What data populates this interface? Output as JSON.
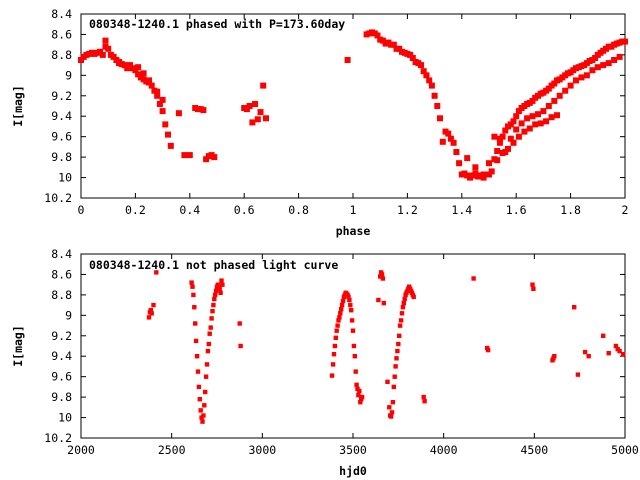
{
  "chart_data": [
    {
      "type": "scatter",
      "title": "080348-1240.1 phased with P=173.60day",
      "xlabel": "phase",
      "ylabel": "I[mag]",
      "xlim": [
        0,
        2
      ],
      "ylim": [
        10.2,
        8.4
      ],
      "y_inverted": true,
      "xticks": [
        "0",
        "0.2",
        "0.4",
        "0.6",
        "0.8",
        "1",
        "1.2",
        "1.4",
        "1.6",
        "1.8",
        "2"
      ],
      "yticks": [
        "8.4",
        "8.6",
        "8.8",
        "9",
        "9.2",
        "9.4",
        "9.6",
        "9.8",
        "10",
        "10.2"
      ],
      "marker_color": "#ff0000",
      "grid": false,
      "series": [
        {
          "x": [
            0.0,
            0.01,
            0.02,
            0.03,
            0.04,
            0.05,
            0.06,
            0.07,
            0.08,
            0.09,
            0.1,
            0.11,
            0.12,
            0.13,
            0.14,
            0.15,
            0.16,
            0.17,
            0.18,
            0.19,
            0.2,
            0.21,
            0.22,
            0.23,
            0.24,
            0.25,
            0.26,
            0.27,
            0.28,
            0.29,
            0.3,
            0.31,
            0.32,
            0.33,
            0.36,
            0.38,
            0.4,
            0.42,
            0.43,
            0.44,
            0.45,
            0.46,
            0.47,
            0.48,
            0.49,
            0.6,
            0.61,
            0.62,
            0.63,
            0.64,
            0.65,
            0.66,
            0.67,
            0.68,
            0.98,
            1.05,
            1.06,
            1.07,
            1.08,
            1.09,
            1.1,
            1.11,
            1.12,
            1.13,
            1.14,
            1.15,
            1.16,
            1.17,
            1.18,
            1.19,
            1.2,
            1.21,
            1.22,
            1.23,
            1.24,
            1.25,
            1.26,
            1.27,
            1.28,
            1.29,
            1.3,
            1.31,
            1.32,
            1.33,
            1.34,
            1.35,
            1.36,
            1.37,
            1.38,
            1.39,
            1.4,
            1.41,
            1.42,
            1.43,
            1.44,
            1.45,
            1.46,
            1.47,
            1.48,
            1.49,
            1.5,
            1.51,
            1.52,
            1.53,
            1.54,
            1.55,
            1.56,
            1.57,
            1.58,
            1.59,
            1.6,
            1.61,
            1.62,
            1.63,
            1.64,
            1.65,
            1.66,
            1.67,
            1.68,
            1.69,
            1.7,
            1.71,
            1.72,
            1.73,
            1.74,
            1.75,
            1.76,
            1.77,
            1.78,
            1.79,
            1.8,
            1.81,
            1.82,
            1.83,
            1.84,
            1.85,
            1.86,
            1.87,
            1.88,
            1.89,
            1.9,
            1.91,
            1.92,
            1.93,
            1.94,
            1.95,
            1.96,
            1.97,
            1.98,
            1.99,
            2.0,
            1.52,
            1.54,
            1.56,
            1.58,
            1.6,
            1.62,
            1.64,
            1.66,
            1.68,
            1.7,
            1.72,
            1.74,
            1.76,
            1.78,
            1.8,
            1.82,
            1.84,
            1.86,
            1.88,
            1.9,
            1.92,
            1.94,
            1.96,
            1.98,
            1.42,
            1.45,
            1.48,
            1.5,
            1.53,
            1.55,
            1.57,
            1.59,
            1.61,
            1.63,
            1.65,
            1.67,
            1.69,
            1.71,
            1.73,
            1.75,
            0.09,
            0.14,
            0.18,
            0.21,
            0.23,
            0.25,
            0.28,
            0.3
          ],
          "y": [
            8.85,
            8.82,
            8.8,
            8.79,
            8.78,
            8.79,
            8.78,
            8.77,
            8.8,
            8.66,
            8.74,
            8.8,
            8.82,
            8.85,
            8.87,
            8.89,
            8.9,
            8.93,
            8.92,
            8.93,
            8.95,
            8.99,
            9.02,
            9.04,
            9.06,
            9.07,
            9.1,
            9.15,
            9.2,
            9.28,
            9.35,
            9.48,
            9.58,
            9.69,
            9.37,
            9.78,
            9.78,
            9.32,
            9.33,
            9.33,
            9.34,
            9.82,
            9.79,
            9.78,
            9.8,
            9.32,
            9.33,
            9.3,
            9.46,
            9.28,
            9.43,
            9.36,
            9.1,
            9.42,
            8.85,
            8.6,
            8.59,
            8.58,
            8.59,
            8.61,
            8.65,
            8.66,
            8.69,
            8.68,
            8.7,
            8.7,
            8.74,
            8.74,
            8.77,
            8.78,
            8.79,
            8.8,
            8.83,
            8.87,
            8.88,
            8.9,
            8.96,
            9.0,
            9.05,
            9.1,
            9.2,
            9.3,
            9.42,
            9.65,
            9.55,
            9.57,
            9.62,
            9.66,
            9.75,
            9.86,
            9.97,
            9.96,
            9.98,
            10.0,
            9.98,
            9.96,
            9.99,
            9.98,
            9.97,
            9.97,
            9.86,
            9.94,
            9.82,
            9.74,
            9.66,
            9.6,
            9.54,
            9.5,
            9.48,
            9.45,
            9.4,
            9.35,
            9.32,
            9.3,
            9.28,
            9.27,
            9.25,
            9.22,
            9.2,
            9.18,
            9.17,
            9.15,
            9.13,
            9.1,
            9.08,
            9.05,
            9.04,
            9.02,
            9.0,
            8.98,
            8.97,
            8.95,
            8.93,
            8.92,
            8.91,
            8.9,
            8.88,
            8.86,
            8.85,
            8.83,
            8.8,
            8.78,
            8.76,
            8.74,
            8.72,
            8.72,
            8.7,
            8.69,
            8.68,
            8.67,
            8.67,
            9.6,
            9.62,
            9.75,
            9.62,
            9.53,
            9.47,
            9.42,
            9.4,
            9.38,
            9.35,
            9.3,
            9.25,
            9.2,
            9.15,
            9.1,
            9.05,
            9.02,
            9.0,
            8.95,
            8.92,
            8.9,
            8.88,
            8.85,
            8.82,
            9.81,
            9.9,
            10.0,
            9.97,
            9.83,
            9.76,
            9.72,
            9.66,
            9.6,
            9.55,
            9.52,
            9.48,
            9.47,
            9.45,
            9.41,
            9.39,
            8.72,
            8.88,
            8.9,
            8.92,
            8.98,
            9.05,
            9.16,
            9.24
          ]
        }
      ]
    },
    {
      "type": "scatter",
      "title": "080348-1240.1 not phased light curve",
      "xlabel": "hjd0",
      "ylabel": "I[mag]",
      "xlim": [
        2000,
        5000
      ],
      "ylim": [
        10.2,
        8.4
      ],
      "y_inverted": true,
      "xticks": [
        "2000",
        "2500",
        "3000",
        "3500",
        "4000",
        "4500",
        "5000"
      ],
      "yticks": [
        "8.4",
        "8.6",
        "8.8",
        "9",
        "9.2",
        "9.4",
        "9.6",
        "9.8",
        "10",
        "10.2"
      ],
      "marker_color": "#ff0000",
      "grid": false,
      "series": [
        {
          "x": [
            2375,
            2380,
            2385,
            2390,
            2400,
            2415,
            2610,
            2615,
            2620,
            2625,
            2630,
            2635,
            2640,
            2645,
            2650,
            2655,
            2660,
            2665,
            2670,
            2675,
            2680,
            2685,
            2690,
            2695,
            2700,
            2705,
            2710,
            2715,
            2720,
            2725,
            2730,
            2735,
            2740,
            2745,
            2750,
            2755,
            2760,
            2765,
            2770,
            2775,
            2780,
            2875,
            2880,
            3385,
            3390,
            3395,
            3400,
            3405,
            3410,
            3415,
            3420,
            3425,
            3430,
            3435,
            3440,
            3445,
            3450,
            3455,
            3460,
            3465,
            3470,
            3475,
            3480,
            3485,
            3490,
            3495,
            3500,
            3505,
            3510,
            3515,
            3520,
            3525,
            3530,
            3535,
            3540,
            3545,
            3550,
            3640,
            3650,
            3655,
            3660,
            3665,
            3670,
            3690,
            3700,
            3705,
            3710,
            3715,
            3720,
            3725,
            3730,
            3735,
            3740,
            3745,
            3750,
            3755,
            3760,
            3765,
            3770,
            3775,
            3780,
            3785,
            3790,
            3795,
            3800,
            3805,
            3810,
            3815,
            3820,
            3825,
            3830,
            3835,
            3890,
            3895,
            4165,
            4240,
            4245,
            4490,
            4495,
            4600,
            4605,
            4610,
            4720,
            4740,
            4780,
            4800,
            4880,
            4910,
            4950,
            4960,
            4970,
            4990
          ],
          "y": [
            9.02,
            8.97,
            8.95,
            8.98,
            8.9,
            8.58,
            8.68,
            8.72,
            8.8,
            8.92,
            9.08,
            9.25,
            9.4,
            9.55,
            9.7,
            9.82,
            9.93,
            10.0,
            10.04,
            9.98,
            9.88,
            9.75,
            9.6,
            9.48,
            9.35,
            9.28,
            9.18,
            9.12,
            9.03,
            8.96,
            8.9,
            8.84,
            8.8,
            8.76,
            8.72,
            8.7,
            8.72,
            8.74,
            8.78,
            8.66,
            8.7,
            9.08,
            9.3,
            9.59,
            9.48,
            9.38,
            9.3,
            9.22,
            9.15,
            9.1,
            9.05,
            9.02,
            8.98,
            8.94,
            8.9,
            8.86,
            8.82,
            8.8,
            8.78,
            8.79,
            8.8,
            8.82,
            8.85,
            8.9,
            8.95,
            9.05,
            9.15,
            9.3,
            9.4,
            9.55,
            9.68,
            9.72,
            9.78,
            9.74,
            9.85,
            9.82,
            9.8,
            8.85,
            8.62,
            8.58,
            8.6,
            8.64,
            8.88,
            9.65,
            9.9,
            9.98,
            9.99,
            9.95,
            9.85,
            9.7,
            9.6,
            9.5,
            9.42,
            9.35,
            9.28,
            9.2,
            9.1,
            9.05,
            8.98,
            8.92,
            8.88,
            8.84,
            8.8,
            8.78,
            8.76,
            8.74,
            8.72,
            8.74,
            8.76,
            8.78,
            8.8,
            8.82,
            9.8,
            9.84,
            8.64,
            9.32,
            9.34,
            8.7,
            8.74,
            9.44,
            9.42,
            9.4,
            8.92,
            9.58,
            9.36,
            9.4,
            9.2,
            9.37,
            9.3,
            9.33,
            9.35,
            9.38
          ]
        }
      ]
    }
  ]
}
